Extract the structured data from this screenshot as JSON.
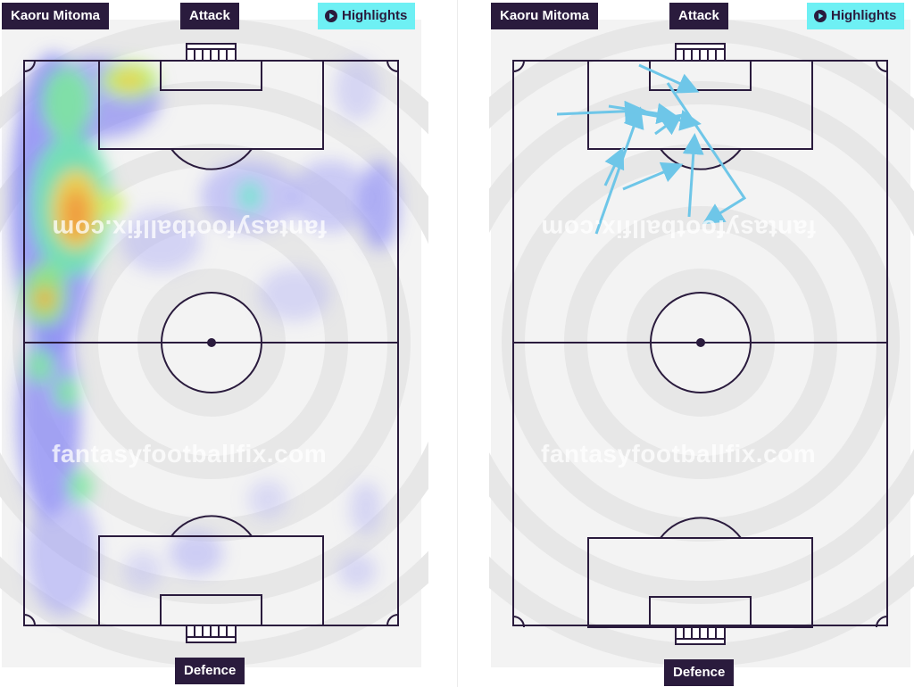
{
  "left_panel": {
    "player_name": "Kaoru Mitoma",
    "attack_label": "Attack",
    "defence_label": "Defence",
    "highlights_label": "Highlights",
    "watermark": "fantasyfootballfix.com",
    "watermark_flipped": "fantasyfootballfix.com"
  },
  "right_panel": {
    "player_name": "Kaoru Mitoma",
    "attack_label": "Attack",
    "defence_label": "Defence",
    "highlights_label": "Highlights",
    "watermark": "fantasyfootballfix.com",
    "watermark_flipped": "fantasyfootballfix.com"
  },
  "colors": {
    "tag_bg": "#2a1b3d",
    "highlight_bg": "#6ef0f4",
    "pitch_line": "#2a1b3d",
    "arrow": "#6ec6e8"
  }
}
